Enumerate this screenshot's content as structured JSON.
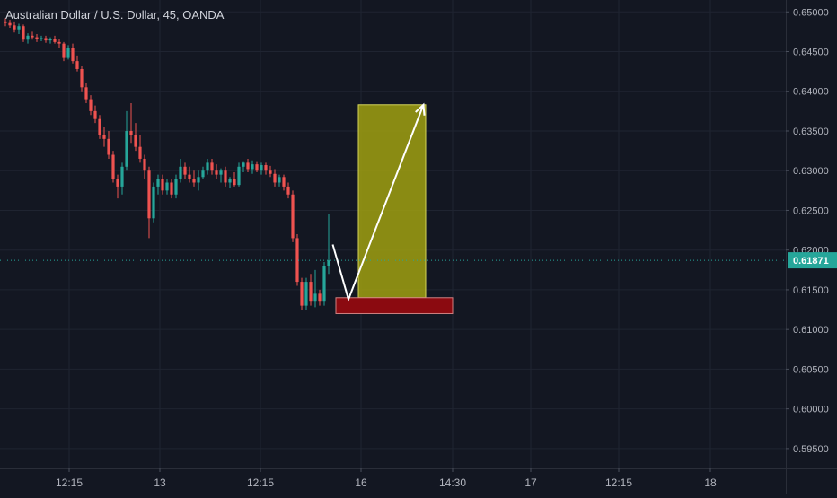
{
  "header": {
    "title": "Australian Dollar / U.S. Dollar, 45, OANDA"
  },
  "colors": {
    "background": "#131722",
    "grid": "#1f2431",
    "axis_text": "#b2b5be",
    "up": "#26a69a",
    "down": "#ef5350",
    "price_line": "#26a69a",
    "price_badge": "#26a69a",
    "target_zone": "#a0a010",
    "stop_zone": "#8b0a10",
    "arrow": "#ffffff"
  },
  "chart_data": {
    "type": "candlestick",
    "symbol": "Australian Dollar / U.S. Dollar",
    "interval": "45",
    "source": "OANDA",
    "x_tick_labels": [
      "12:15",
      "13",
      "12:15",
      "16",
      "14:30",
      "17",
      "12:15",
      "18"
    ],
    "y_tick_labels": [
      "0.65000",
      "0.64500",
      "0.64000",
      "0.63500",
      "0.63000",
      "0.62500",
      "0.62000",
      "0.61500",
      "0.61000",
      "0.60500",
      "0.60000",
      "0.59500"
    ],
    "y_ticks": [
      0.65,
      0.645,
      0.64,
      0.635,
      0.63,
      0.625,
      0.62,
      0.615,
      0.61,
      0.605,
      0.6,
      0.595
    ],
    "ylim": [
      0.5925,
      0.6515
    ],
    "grid": true,
    "current_price": 0.61871,
    "current_price_label": "0.61871",
    "candles": [
      [
        0.6488,
        0.6492,
        0.6482,
        0.6486
      ],
      [
        0.6486,
        0.649,
        0.648,
        0.6483
      ],
      [
        0.6483,
        0.6488,
        0.6474,
        0.6478
      ],
      [
        0.6478,
        0.6485,
        0.6472,
        0.6482
      ],
      [
        0.6482,
        0.6484,
        0.6462,
        0.6465
      ],
      [
        0.6465,
        0.6473,
        0.646,
        0.647
      ],
      [
        0.647,
        0.6475,
        0.6465,
        0.6468
      ],
      [
        0.6468,
        0.6472,
        0.6462,
        0.6466
      ],
      [
        0.6466,
        0.647,
        0.6463,
        0.6467
      ],
      [
        0.6467,
        0.647,
        0.6461,
        0.6464
      ],
      [
        0.6464,
        0.6468,
        0.646,
        0.6466
      ],
      [
        0.6466,
        0.647,
        0.646,
        0.6462
      ],
      [
        0.6462,
        0.6466,
        0.6455,
        0.646
      ],
      [
        0.646,
        0.6462,
        0.6438,
        0.6442
      ],
      [
        0.6442,
        0.6458,
        0.644,
        0.6455
      ],
      [
        0.6455,
        0.646,
        0.6435,
        0.6438
      ],
      [
        0.6438,
        0.6445,
        0.6425,
        0.6428
      ],
      [
        0.6428,
        0.6432,
        0.64,
        0.6405
      ],
      [
        0.6405,
        0.641,
        0.6385,
        0.639
      ],
      [
        0.639,
        0.6395,
        0.637,
        0.6375
      ],
      [
        0.6375,
        0.6382,
        0.636,
        0.6365
      ],
      [
        0.6365,
        0.637,
        0.634,
        0.6345
      ],
      [
        0.6345,
        0.6355,
        0.633,
        0.634
      ],
      [
        0.634,
        0.635,
        0.6315,
        0.632
      ],
      [
        0.632,
        0.6325,
        0.6285,
        0.629
      ],
      [
        0.629,
        0.6295,
        0.6265,
        0.628
      ],
      [
        0.628,
        0.631,
        0.627,
        0.6305
      ],
      [
        0.6305,
        0.6375,
        0.63,
        0.635
      ],
      [
        0.635,
        0.6385,
        0.6335,
        0.6345
      ],
      [
        0.6345,
        0.636,
        0.6325,
        0.633
      ],
      [
        0.633,
        0.6345,
        0.631,
        0.6315
      ],
      [
        0.6315,
        0.632,
        0.629,
        0.63
      ],
      [
        0.63,
        0.6305,
        0.6215,
        0.624
      ],
      [
        0.624,
        0.6285,
        0.6235,
        0.628
      ],
      [
        0.628,
        0.6295,
        0.627,
        0.629
      ],
      [
        0.629,
        0.6295,
        0.627,
        0.6275
      ],
      [
        0.6275,
        0.629,
        0.627,
        0.6285
      ],
      [
        0.6285,
        0.629,
        0.6265,
        0.627
      ],
      [
        0.627,
        0.6295,
        0.6265,
        0.629
      ],
      [
        0.629,
        0.6315,
        0.6285,
        0.6305
      ],
      [
        0.6305,
        0.631,
        0.629,
        0.6295
      ],
      [
        0.6295,
        0.6305,
        0.6285,
        0.629
      ],
      [
        0.629,
        0.63,
        0.628,
        0.6285
      ],
      [
        0.6285,
        0.63,
        0.6275,
        0.6292
      ],
      [
        0.6292,
        0.6305,
        0.629,
        0.63
      ],
      [
        0.63,
        0.6315,
        0.6295,
        0.631
      ],
      [
        0.631,
        0.6315,
        0.6295,
        0.63
      ],
      [
        0.63,
        0.6308,
        0.629,
        0.6295
      ],
      [
        0.6295,
        0.6303,
        0.6285,
        0.63
      ],
      [
        0.63,
        0.6305,
        0.628,
        0.6285
      ],
      [
        0.6285,
        0.6292,
        0.6278,
        0.629
      ],
      [
        0.629,
        0.6298,
        0.628,
        0.6282
      ],
      [
        0.6282,
        0.631,
        0.628,
        0.6305
      ],
      [
        0.6305,
        0.6312,
        0.6298,
        0.631
      ],
      [
        0.631,
        0.6315,
        0.6298,
        0.6302
      ],
      [
        0.6302,
        0.6313,
        0.6296,
        0.6308
      ],
      [
        0.6308,
        0.6312,
        0.6298,
        0.63
      ],
      [
        0.63,
        0.631,
        0.6295,
        0.6307
      ],
      [
        0.6307,
        0.631,
        0.6295,
        0.63
      ],
      [
        0.63,
        0.6306,
        0.6292,
        0.6296
      ],
      [
        0.6296,
        0.6302,
        0.628,
        0.6285
      ],
      [
        0.6285,
        0.6295,
        0.628,
        0.6292
      ],
      [
        0.6292,
        0.6295,
        0.6275,
        0.628
      ],
      [
        0.628,
        0.6285,
        0.6265,
        0.627
      ],
      [
        0.627,
        0.6275,
        0.621,
        0.6215
      ],
      [
        0.6215,
        0.622,
        0.6155,
        0.616
      ],
      [
        0.616,
        0.6165,
        0.6125,
        0.613
      ],
      [
        0.613,
        0.6165,
        0.6125,
        0.616
      ],
      [
        0.616,
        0.617,
        0.613,
        0.6135
      ],
      [
        0.6135,
        0.6175,
        0.6128,
        0.6145
      ],
      [
        0.6145,
        0.615,
        0.613,
        0.6135
      ],
      [
        0.6135,
        0.6185,
        0.613,
        0.618
      ],
      [
        0.618,
        0.6245,
        0.617,
        0.6187
      ]
    ],
    "annotations": {
      "target_zone": {
        "price_top": 0.6383,
        "price_bottom": 0.614,
        "from_index": 79,
        "to_index": 94
      },
      "stop_zone": {
        "price_top": 0.614,
        "price_bottom": 0.612,
        "from_index": 74,
        "to_index": 100
      },
      "arrow_path": [
        {
          "index": 73.3,
          "price": 0.6207
        },
        {
          "index": 76.8,
          "price": 0.6138
        },
        {
          "index": 93.5,
          "price": 0.6383
        }
      ]
    }
  }
}
